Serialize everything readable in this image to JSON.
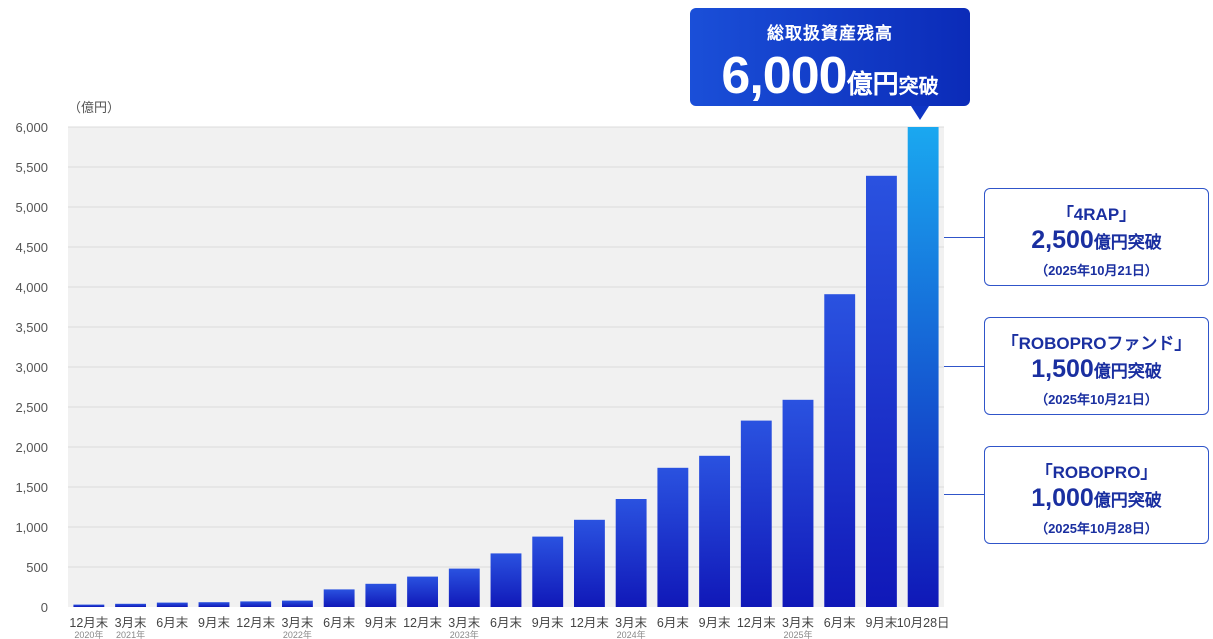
{
  "callout": {
    "title": "総取扱資産残高",
    "value": "6,000",
    "unit": "億円",
    "suffix": "突破"
  },
  "milestones": [
    {
      "name": "「4RAP」",
      "value": "2,500",
      "unit": "億円突破",
      "date": "（2025年10月21日）"
    },
    {
      "name": "「ROBOPROファンド」",
      "value": "1,500",
      "unit": "億円突破",
      "date": "（2025年10月21日）"
    },
    {
      "name": "「ROBOPRO」",
      "value": "1,000",
      "unit": "億円突破",
      "date": "（2025年10月28日）"
    }
  ],
  "colors": {
    "bar_bottom": "#1018b8",
    "bar_top": "#2a52e0",
    "last_bar_top": "#1aa8f0",
    "plot_bg": "#f1f1f1",
    "grid": "#dcdcdc",
    "accent": "#1a2fa0"
  },
  "chart_data": {
    "type": "bar",
    "ylabel": "（億円）",
    "ylim": [
      0,
      6000
    ],
    "yticks": [
      0,
      500,
      1000,
      1500,
      2000,
      2500,
      3000,
      3500,
      4000,
      4500,
      5000,
      5500,
      6000
    ],
    "grid": true,
    "categories": [
      "12月末",
      "3月末",
      "6月末",
      "9月末",
      "12月末",
      "3月末",
      "6月末",
      "9月末",
      "12月末",
      "3月末",
      "6月末",
      "9月末",
      "12月末",
      "3月末",
      "6月末",
      "9月末",
      "12月末",
      "3月末",
      "6月末",
      "9月末",
      "10月28日"
    ],
    "year_labels": [
      "2020年",
      "2021年",
      "",
      "",
      "",
      "2022年",
      "",
      "",
      "",
      "2023年",
      "",
      "",
      "",
      "2024年",
      "",
      "",
      "",
      "2025年",
      "",
      "",
      ""
    ],
    "values": [
      30,
      40,
      55,
      60,
      70,
      80,
      220,
      290,
      380,
      480,
      670,
      880,
      1090,
      1350,
      1740,
      1890,
      2330,
      2590,
      3910,
      5390,
      6000
    ]
  }
}
